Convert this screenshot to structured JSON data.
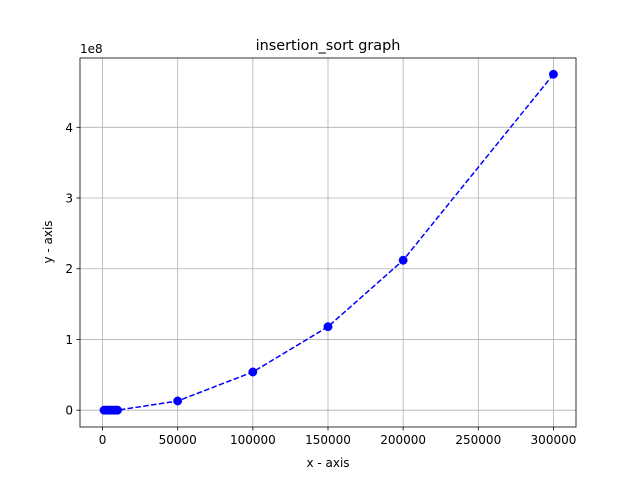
{
  "chart_data": {
    "type": "line",
    "title": "insertion_sort graph",
    "xlabel": "x - axis",
    "ylabel": "y - axis",
    "y_offset_label": "1e8",
    "y_scale": 100000000,
    "xlim": [
      -15000,
      315000
    ],
    "ylim": [
      -23800000,
      498000000
    ],
    "x_ticks": [
      0,
      50000,
      100000,
      150000,
      200000,
      250000,
      300000
    ],
    "x_tick_labels": [
      "0",
      "50000",
      "100000",
      "150000",
      "200000",
      "250000",
      "300000"
    ],
    "y_ticks": [
      0,
      100000000,
      200000000,
      300000000,
      400000000
    ],
    "y_tick_labels": [
      "0",
      "1",
      "2",
      "3",
      "4"
    ],
    "grid": true,
    "series": [
      {
        "color": "#0000ff",
        "line_style": "dashed",
        "marker": "circle",
        "x": [
          1000,
          2000,
          3000,
          4000,
          5000,
          6000,
          7000,
          8000,
          9000,
          10000,
          50000,
          100000,
          150000,
          200000,
          300000
        ],
        "values": [
          0,
          0,
          0,
          0,
          0,
          0,
          0,
          0,
          0,
          0,
          13000000,
          54000000,
          118000000,
          212000000,
          475000000
        ]
      }
    ]
  }
}
